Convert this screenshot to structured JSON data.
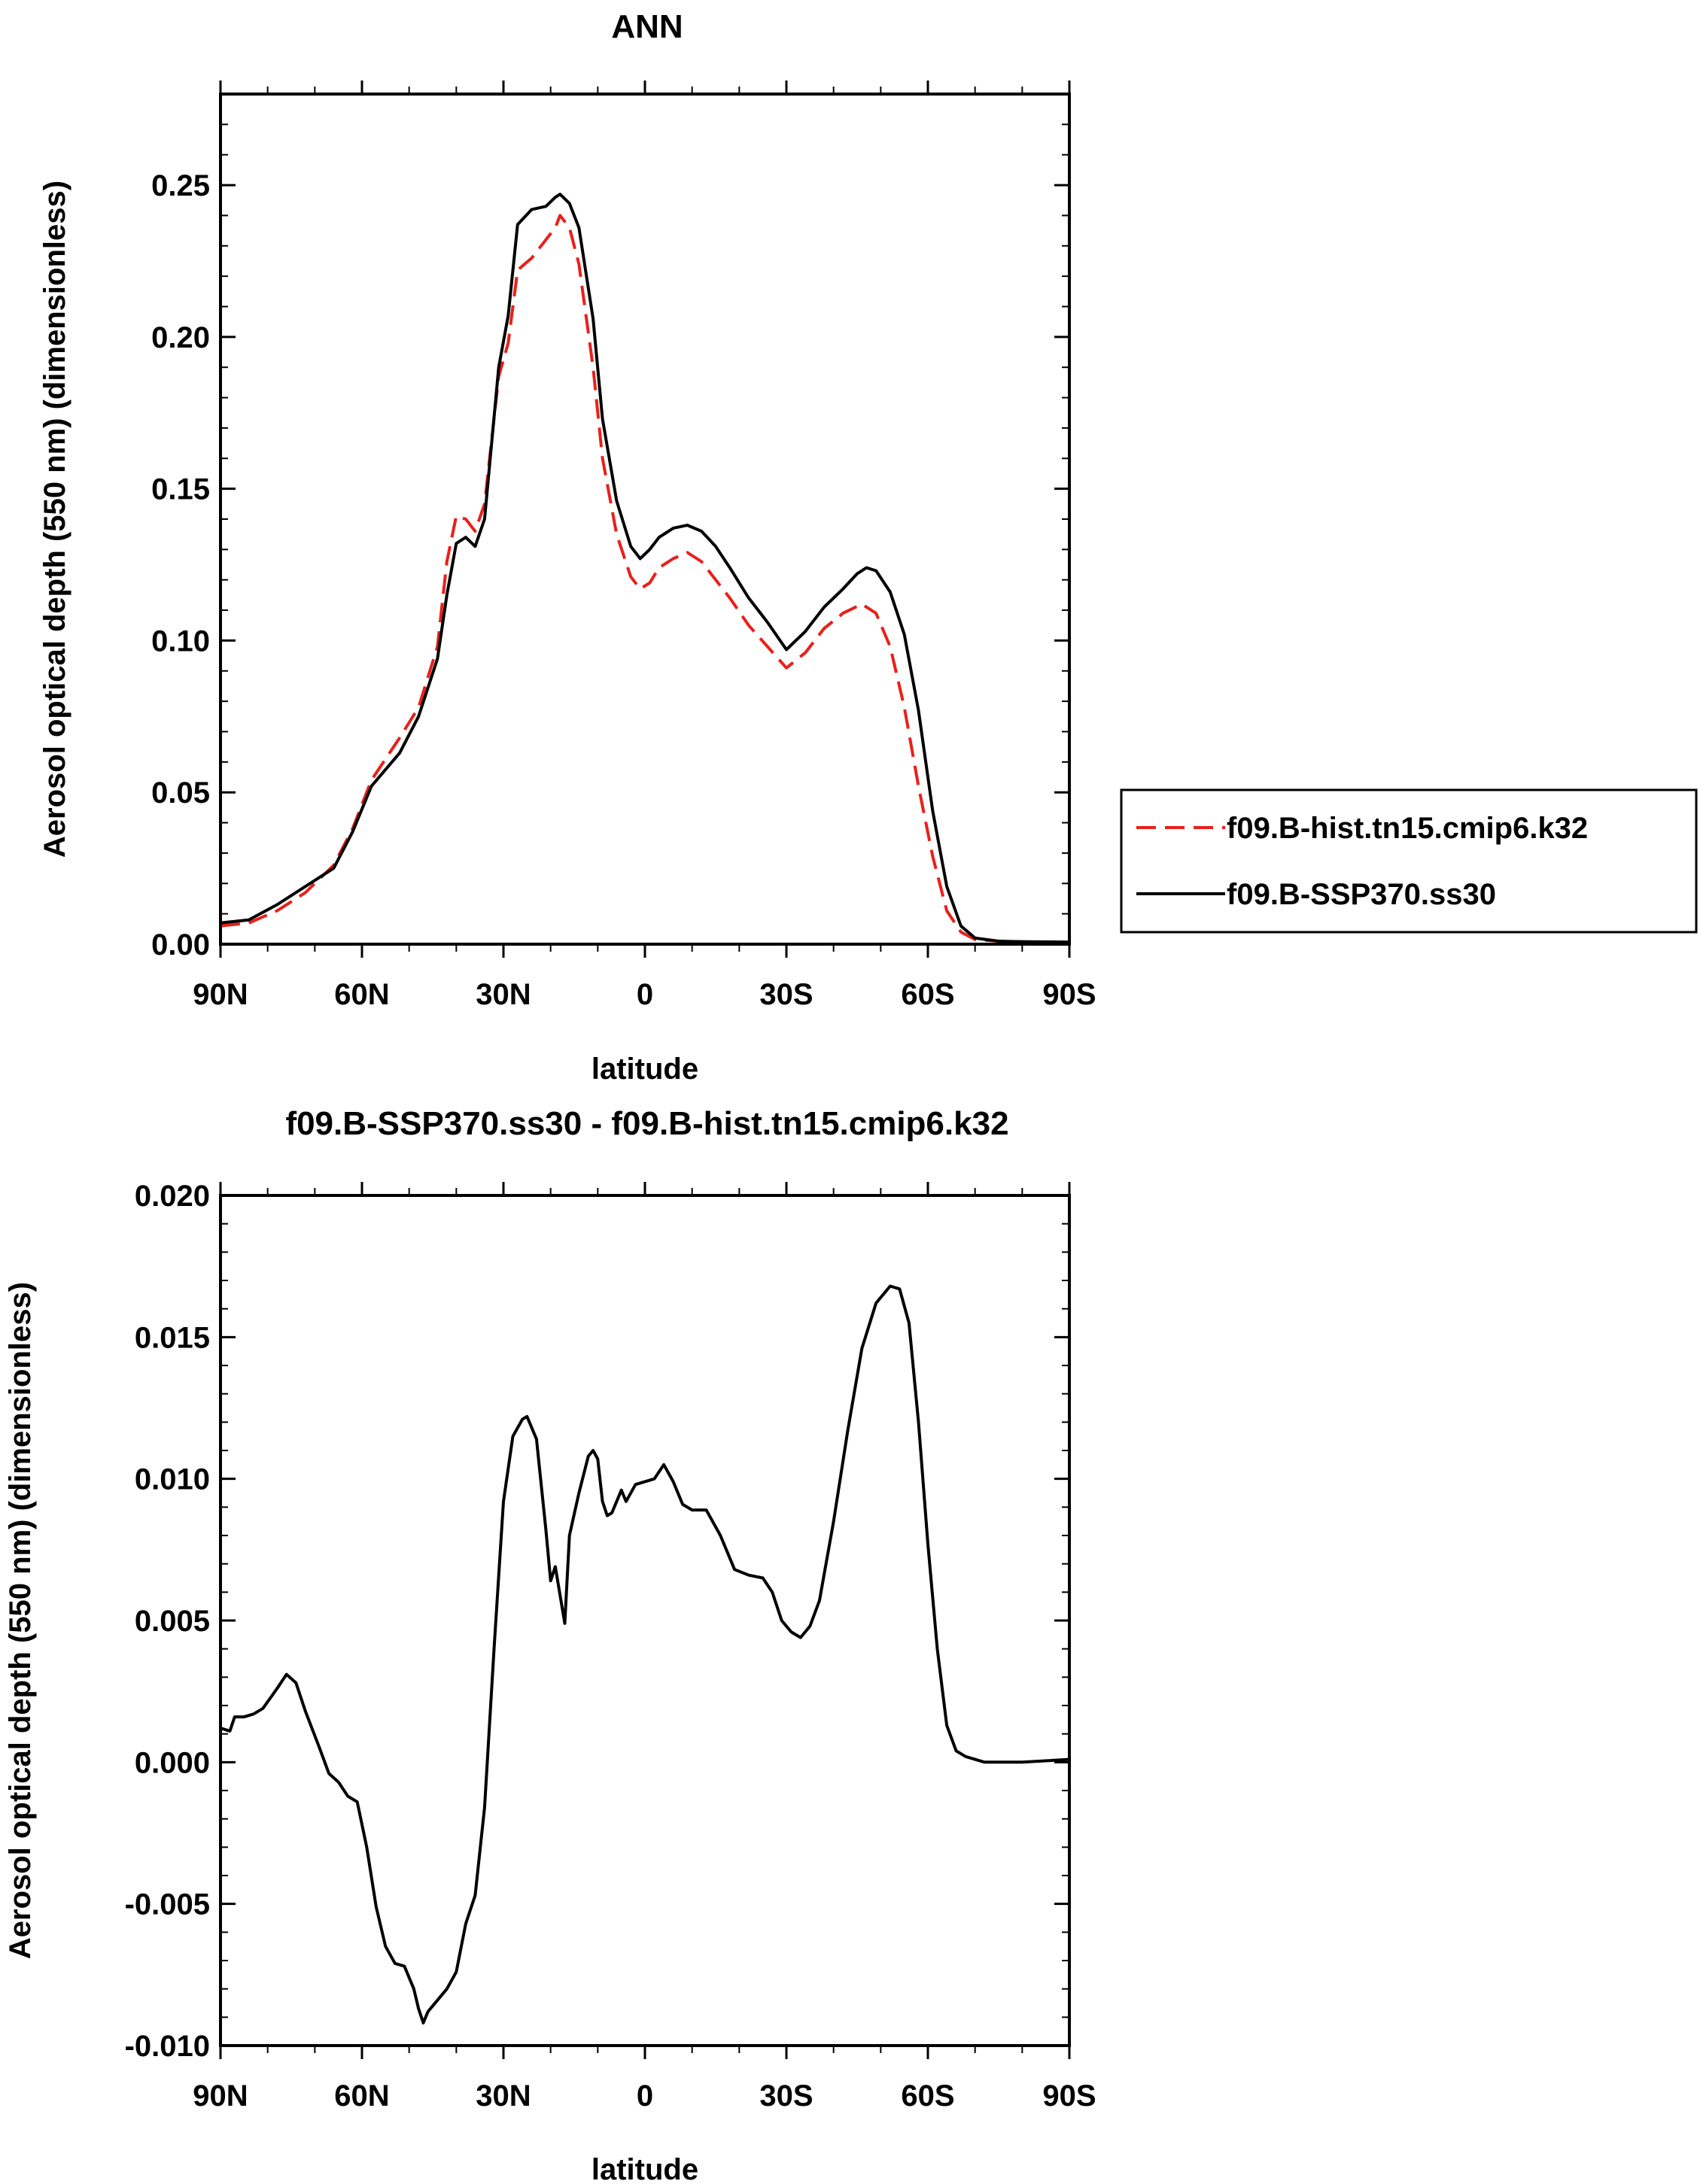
{
  "chart_data": [
    {
      "type": "line",
      "title": "ANN",
      "xlabel": "latitude",
      "ylabel": "Aerosol optical depth (550 nm) (dimensionless)",
      "xlim": [
        90,
        -90
      ],
      "ylim": [
        0,
        0.28
      ],
      "x_ticks": [
        {
          "value": 90,
          "label": "90N"
        },
        {
          "value": 60,
          "label": "60N"
        },
        {
          "value": 30,
          "label": "30N"
        },
        {
          "value": 0,
          "label": "0"
        },
        {
          "value": -30,
          "label": "30S"
        },
        {
          "value": -60,
          "label": "60S"
        },
        {
          "value": -90,
          "label": "90S"
        }
      ],
      "y_ticks": [
        {
          "value": 0,
          "label": "0.00"
        },
        {
          "value": 0.05,
          "label": "0.05"
        },
        {
          "value": 0.1,
          "label": "0.10"
        },
        {
          "value": 0.15,
          "label": "0.15"
        },
        {
          "value": 0.2,
          "label": "0.20"
        },
        {
          "value": 0.25,
          "label": "0.25"
        }
      ],
      "legend_position": "right",
      "series": [
        {
          "name": "f09.B-hist.tn15.cmip6.k32",
          "color": "#e8201c",
          "style": "dashed",
          "points": [
            [
              90,
              0.006
            ],
            [
              84,
              0.007
            ],
            [
              78,
              0.011
            ],
            [
              72,
              0.017
            ],
            [
              66,
              0.026
            ],
            [
              62,
              0.038
            ],
            [
              58,
              0.054
            ],
            [
              52,
              0.068
            ],
            [
              48,
              0.078
            ],
            [
              44,
              0.098
            ],
            [
              42,
              0.126
            ],
            [
              40,
              0.141
            ],
            [
              38,
              0.14
            ],
            [
              36,
              0.136
            ],
            [
              34,
              0.145
            ],
            [
              31,
              0.187
            ],
            [
              29,
              0.198
            ],
            [
              27,
              0.222
            ],
            [
              24,
              0.226
            ],
            [
              21,
              0.232
            ],
            [
              19,
              0.236
            ],
            [
              18,
              0.24
            ],
            [
              16,
              0.236
            ],
            [
              14,
              0.224
            ],
            [
              11,
              0.19
            ],
            [
              9,
              0.16
            ],
            [
              6,
              0.135
            ],
            [
              3,
              0.121
            ],
            [
              1,
              0.117
            ],
            [
              -1,
              0.119
            ],
            [
              -3,
              0.124
            ],
            [
              -6,
              0.127
            ],
            [
              -9,
              0.129
            ],
            [
              -12,
              0.126
            ],
            [
              -15,
              0.12
            ],
            [
              -18,
              0.114
            ],
            [
              -22,
              0.105
            ],
            [
              -26,
              0.098
            ],
            [
              -30,
              0.091
            ],
            [
              -34,
              0.096
            ],
            [
              -38,
              0.104
            ],
            [
              -42,
              0.109
            ],
            [
              -46,
              0.112
            ],
            [
              -49,
              0.109
            ],
            [
              -52,
              0.098
            ],
            [
              -55,
              0.078
            ],
            [
              -58,
              0.052
            ],
            [
              -61,
              0.029
            ],
            [
              -64,
              0.011
            ],
            [
              -67,
              0.004
            ],
            [
              -70,
              0.0015
            ],
            [
              -75,
              0.001
            ],
            [
              -80,
              0.0008
            ],
            [
              -90,
              0.0006
            ]
          ]
        },
        {
          "name": "f09.B-SSP370.ss30",
          "color": "#000000",
          "style": "solid",
          "points": [
            [
              90,
              0.007
            ],
            [
              84,
              0.008
            ],
            [
              78,
              0.013
            ],
            [
              72,
              0.019
            ],
            [
              66,
              0.025
            ],
            [
              62,
              0.037
            ],
            [
              58,
              0.052
            ],
            [
              52,
              0.063
            ],
            [
              48,
              0.075
            ],
            [
              44,
              0.094
            ],
            [
              42,
              0.115
            ],
            [
              40,
              0.132
            ],
            [
              38,
              0.134
            ],
            [
              36,
              0.131
            ],
            [
              34,
              0.14
            ],
            [
              31,
              0.19
            ],
            [
              29,
              0.207
            ],
            [
              27,
              0.237
            ],
            [
              24,
              0.242
            ],
            [
              21,
              0.243
            ],
            [
              19,
              0.246
            ],
            [
              18,
              0.247
            ],
            [
              16,
              0.244
            ],
            [
              14,
              0.236
            ],
            [
              11,
              0.206
            ],
            [
              9,
              0.173
            ],
            [
              6,
              0.146
            ],
            [
              3,
              0.131
            ],
            [
              1,
              0.127
            ],
            [
              -1,
              0.13
            ],
            [
              -3,
              0.134
            ],
            [
              -6,
              0.137
            ],
            [
              -9,
              0.138
            ],
            [
              -12,
              0.136
            ],
            [
              -15,
              0.131
            ],
            [
              -18,
              0.124
            ],
            [
              -22,
              0.114
            ],
            [
              -26,
              0.106
            ],
            [
              -30,
              0.097
            ],
            [
              -34,
              0.103
            ],
            [
              -38,
              0.111
            ],
            [
              -42,
              0.117
            ],
            [
              -45,
              0.122
            ],
            [
              -47,
              0.124
            ],
            [
              -49,
              0.123
            ],
            [
              -52,
              0.116
            ],
            [
              -55,
              0.102
            ],
            [
              -58,
              0.077
            ],
            [
              -61,
              0.044
            ],
            [
              -64,
              0.019
            ],
            [
              -67,
              0.006
            ],
            [
              -70,
              0.002
            ],
            [
              -75,
              0.001
            ],
            [
              -80,
              0.0008
            ],
            [
              -90,
              0.0007
            ]
          ]
        }
      ]
    },
    {
      "type": "line",
      "title": "f09.B-SSP370.ss30 - f09.B-hist.tn15.cmip6.k32",
      "xlabel": "latitude",
      "ylabel": "Aerosol optical depth (550 nm) (dimensionless)",
      "xlim": [
        90,
        -90
      ],
      "ylim": [
        -0.01,
        0.02
      ],
      "x_ticks": [
        {
          "value": 90,
          "label": "90N"
        },
        {
          "value": 60,
          "label": "60N"
        },
        {
          "value": 30,
          "label": "30N"
        },
        {
          "value": 0,
          "label": "0"
        },
        {
          "value": -30,
          "label": "30S"
        },
        {
          "value": -60,
          "label": "60S"
        },
        {
          "value": -90,
          "label": "90S"
        }
      ],
      "y_ticks": [
        {
          "value": -0.01,
          "label": "-0.010"
        },
        {
          "value": -0.005,
          "label": "-0.005"
        },
        {
          "value": 0.0,
          "label": "0.000"
        },
        {
          "value": 0.005,
          "label": "0.005"
        },
        {
          "value": 0.01,
          "label": "0.010"
        },
        {
          "value": 0.015,
          "label": "0.015"
        },
        {
          "value": 0.02,
          "label": "0.020"
        }
      ],
      "series": [
        {
          "color": "#000000",
          "style": "solid",
          "points": [
            [
              90,
              0.0012
            ],
            [
              88,
              0.0011
            ],
            [
              87,
              0.0016
            ],
            [
              85,
              0.0016
            ],
            [
              83,
              0.0017
            ],
            [
              81,
              0.0019
            ],
            [
              78,
              0.0026
            ],
            [
              76,
              0.0031
            ],
            [
              74,
              0.0028
            ],
            [
              72,
              0.0018
            ],
            [
              69,
              0.0005
            ],
            [
              67,
              -0.0004
            ],
            [
              65,
              -0.0007
            ],
            [
              63,
              -0.0012
            ],
            [
              61,
              -0.0014
            ],
            [
              59,
              -0.003
            ],
            [
              57,
              -0.0051
            ],
            [
              55,
              -0.0065
            ],
            [
              53,
              -0.0071
            ],
            [
              51,
              -0.0072
            ],
            [
              49,
              -0.008
            ],
            [
              48,
              -0.0087
            ],
            [
              47,
              -0.0092
            ],
            [
              46,
              -0.0088
            ],
            [
              44,
              -0.0084
            ],
            [
              42,
              -0.008
            ],
            [
              40,
              -0.0074
            ],
            [
              38,
              -0.0057
            ],
            [
              36,
              -0.0047
            ],
            [
              34,
              -0.0016
            ],
            [
              32,
              0.004
            ],
            [
              30,
              0.0092
            ],
            [
              28,
              0.0115
            ],
            [
              26,
              0.0121
            ],
            [
              25,
              0.0122
            ],
            [
              23,
              0.0114
            ],
            [
              21,
              0.0082
            ],
            [
              20,
              0.0064
            ],
            [
              19,
              0.0069
            ],
            [
              17,
              0.0049
            ],
            [
              16,
              0.008
            ],
            [
              14,
              0.0095
            ],
            [
              12,
              0.0108
            ],
            [
              11,
              0.011
            ],
            [
              10,
              0.0107
            ],
            [
              9,
              0.0092
            ],
            [
              8,
              0.0087
            ],
            [
              7,
              0.0088
            ],
            [
              5,
              0.0096
            ],
            [
              4,
              0.0092
            ],
            [
              2,
              0.0098
            ],
            [
              0,
              0.0099
            ],
            [
              -2,
              0.01
            ],
            [
              -4,
              0.0105
            ],
            [
              -6,
              0.0099
            ],
            [
              -8,
              0.0091
            ],
            [
              -10,
              0.0089
            ],
            [
              -13,
              0.0089
            ],
            [
              -16,
              0.008
            ],
            [
              -19,
              0.0068
            ],
            [
              -22,
              0.0066
            ],
            [
              -25,
              0.0065
            ],
            [
              -27,
              0.006
            ],
            [
              -29,
              0.005
            ],
            [
              -31,
              0.0046
            ],
            [
              -33,
              0.0044
            ],
            [
              -35,
              0.0048
            ],
            [
              -37,
              0.0057
            ],
            [
              -40,
              0.0085
            ],
            [
              -43,
              0.0117
            ],
            [
              -46,
              0.0146
            ],
            [
              -49,
              0.0162
            ],
            [
              -52,
              0.0168
            ],
            [
              -54,
              0.0167
            ],
            [
              -56,
              0.0155
            ],
            [
              -58,
              0.012
            ],
            [
              -60,
              0.0077
            ],
            [
              -62,
              0.004
            ],
            [
              -64,
              0.0013
            ],
            [
              -66,
              0.0004
            ],
            [
              -68,
              0.0002
            ],
            [
              -72,
              0.0
            ],
            [
              -80,
              0.0
            ],
            [
              -90,
              0.0001
            ]
          ]
        }
      ]
    }
  ]
}
